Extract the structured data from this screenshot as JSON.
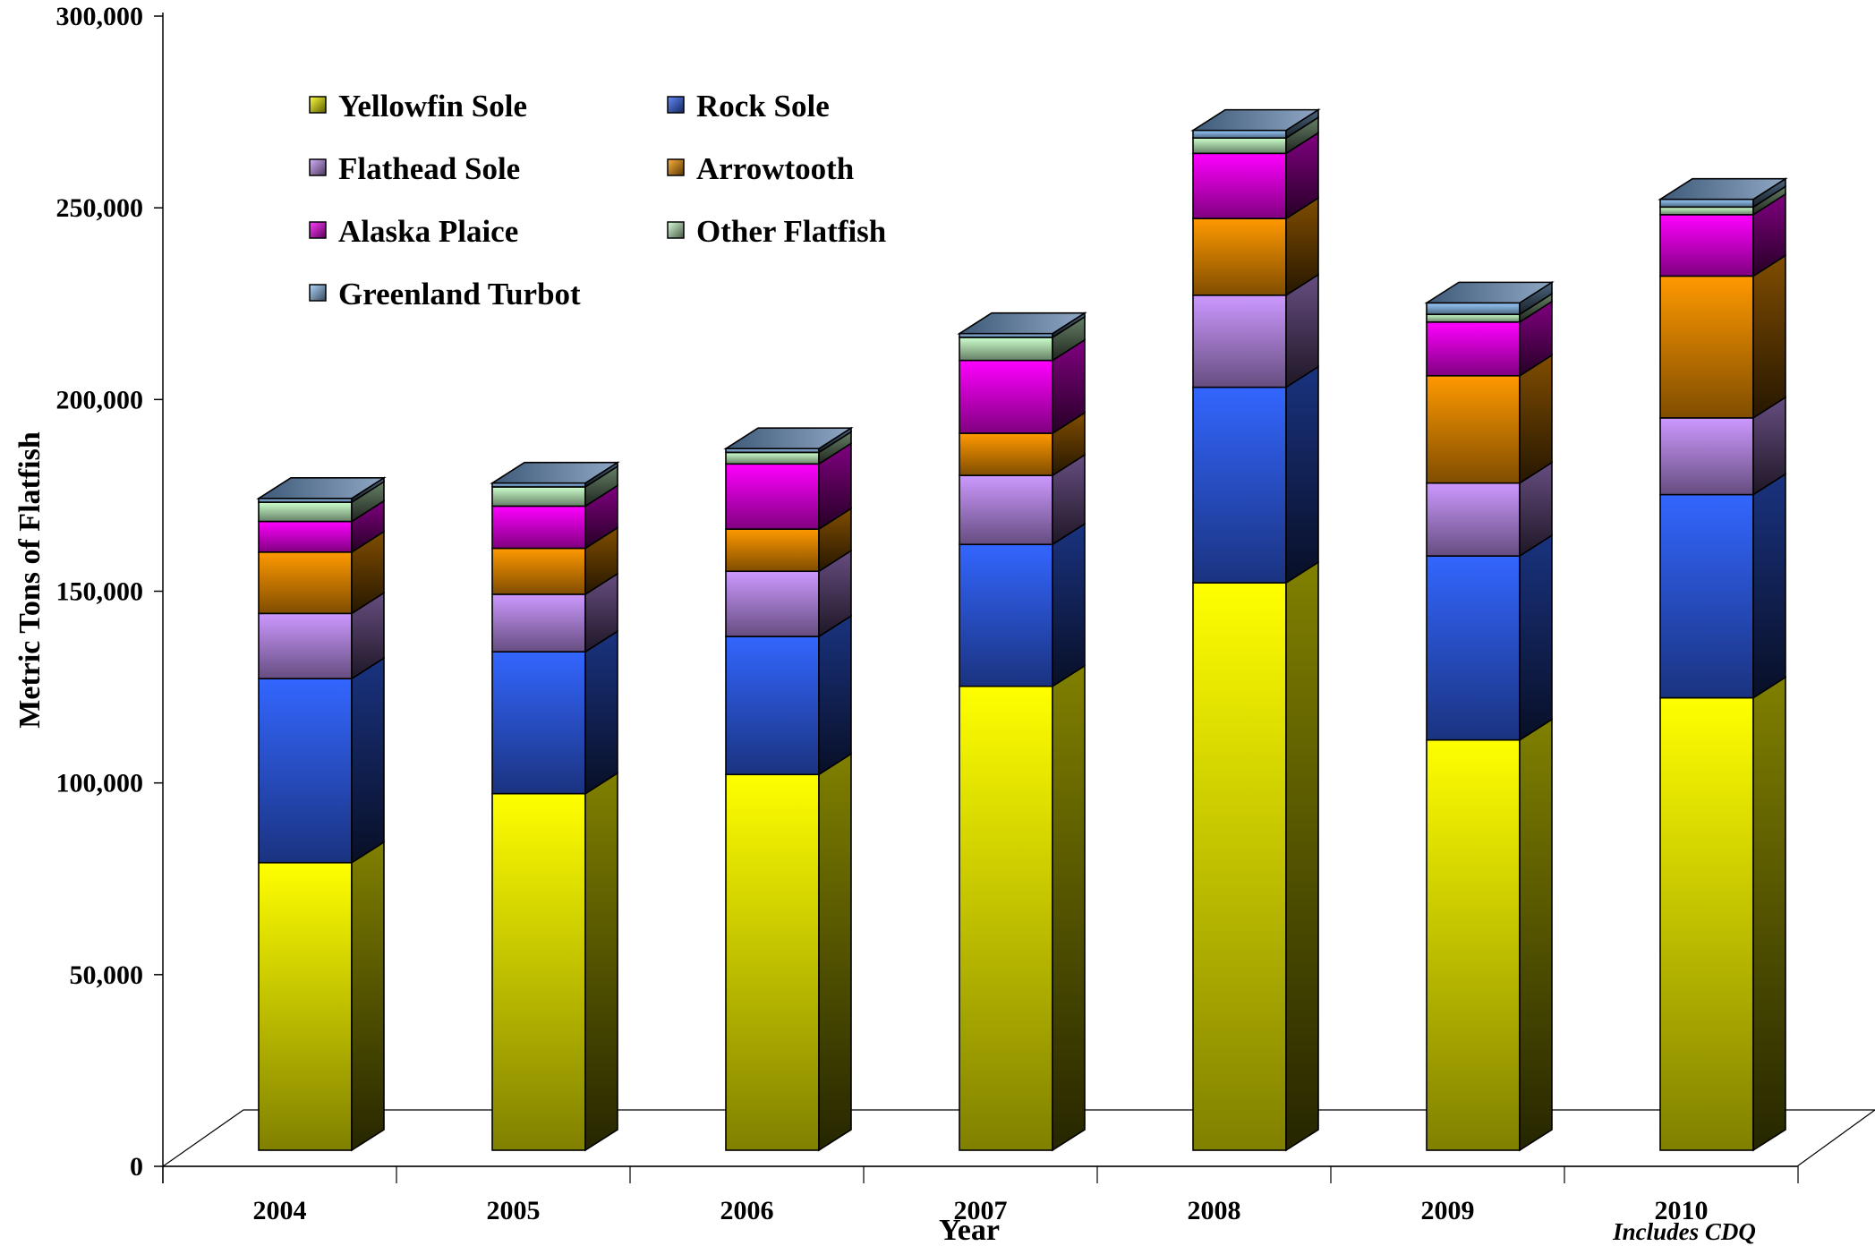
{
  "chart_data": {
    "type": "bar",
    "stacked": true,
    "style": "3d-stacked-columns",
    "xlabel": "Year",
    "ylabel": "Metric Tons of Flatfish",
    "note": "Includes CDQ",
    "categories": [
      "2004",
      "2005",
      "2006",
      "2007",
      "2008",
      "2009",
      "2010"
    ],
    "ylim": [
      0,
      300000
    ],
    "ytick_values": [
      0,
      50000,
      100000,
      150000,
      200000,
      250000,
      300000
    ],
    "ytick_labels": [
      "0",
      "50,000",
      "100,000",
      "150,000",
      "200,000",
      "250,000",
      "300,000"
    ],
    "legend_position": "top-left, inside plot",
    "series": [
      {
        "name": "Yellowfin Sole",
        "color": "#ffff00",
        "values": [
          75000,
          93000,
          98000,
          121000,
          148000,
          107000,
          118000
        ]
      },
      {
        "name": "Rock Sole",
        "color": "#3366ff",
        "values": [
          48000,
          37000,
          36000,
          37000,
          51000,
          48000,
          53000
        ]
      },
      {
        "name": "Flathead Sole",
        "color": "#cc99ff",
        "values": [
          17000,
          15000,
          17000,
          18000,
          24000,
          19000,
          20000
        ]
      },
      {
        "name": "Arrowtooth",
        "color": "#ff9900",
        "values": [
          16000,
          12000,
          11000,
          11000,
          20000,
          28000,
          37000
        ]
      },
      {
        "name": "Alaska Plaice",
        "color": "#ff00ff",
        "values": [
          8000,
          11000,
          17000,
          19000,
          17000,
          14000,
          16000
        ]
      },
      {
        "name": "Other Flatfish",
        "color": "#ccffcc",
        "values": [
          5000,
          5000,
          3000,
          6000,
          4000,
          2000,
          2000
        ]
      },
      {
        "name": "Greenland Turbot",
        "color": "#99ccff",
        "values": [
          1000,
          1000,
          1000,
          1000,
          2000,
          3000,
          2000
        ]
      }
    ]
  }
}
